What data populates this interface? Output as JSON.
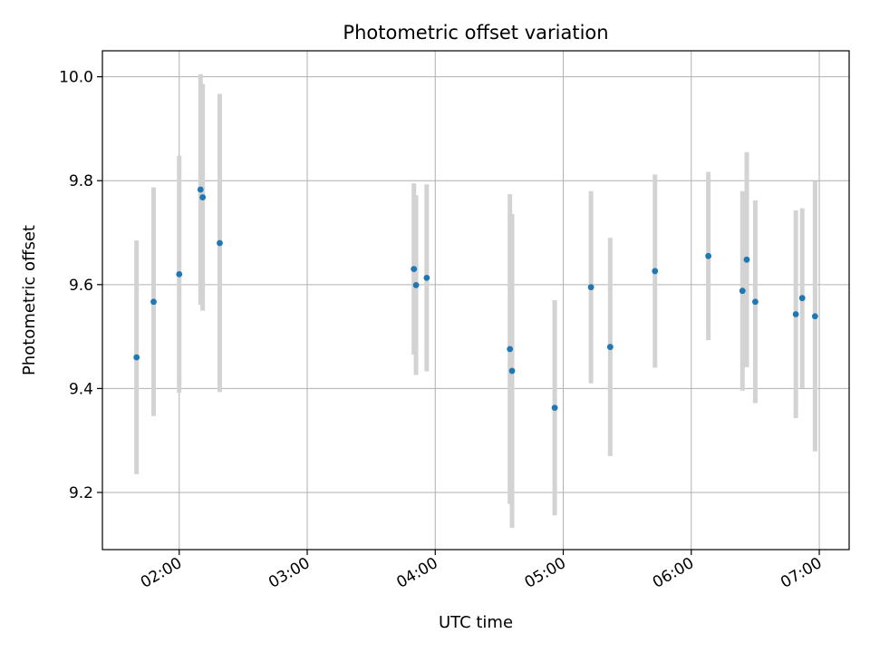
{
  "chart_data": {
    "type": "scatter",
    "title": "Photometric offset variation",
    "xlabel": "UTC time",
    "ylabel": "Photometric offset",
    "x_ticks": [
      "02:00",
      "03:00",
      "04:00",
      "05:00",
      "06:00",
      "07:00"
    ],
    "y_ticks": [
      "9.2",
      "9.4",
      "9.6",
      "9.8",
      "10.0"
    ],
    "xlim": [
      "01:24",
      "07:14"
    ],
    "ylim": [
      9.09,
      10.05
    ],
    "grid": true,
    "colors": {
      "point": "#1f77b4",
      "errorbar": "#d3d3d3",
      "grid": "#b0b0b0"
    },
    "points": [
      {
        "time": "01:40",
        "y": 9.46,
        "yerr": 0.225
      },
      {
        "time": "01:48",
        "y": 9.567,
        "yerr": 0.22
      },
      {
        "time": "02:00",
        "y": 9.62,
        "yerr": 0.228
      },
      {
        "time": "02:10",
        "y": 9.783,
        "yerr": 0.222
      },
      {
        "time": "02:11",
        "y": 9.768,
        "yerr": 0.218
      },
      {
        "time": "02:19",
        "y": 9.68,
        "yerr": 0.287
      },
      {
        "time": "03:50",
        "y": 9.63,
        "yerr": 0.165
      },
      {
        "time": "03:51",
        "y": 9.599,
        "yerr": 0.173
      },
      {
        "time": "03:56",
        "y": 9.613,
        "yerr": 0.18
      },
      {
        "time": "04:35",
        "y": 9.476,
        "yerr": 0.298
      },
      {
        "time": "04:36",
        "y": 9.434,
        "yerr": 0.302
      },
      {
        "time": "04:56",
        "y": 9.363,
        "yerr": 0.207
      },
      {
        "time": "05:13",
        "y": 9.595,
        "yerr": 0.185
      },
      {
        "time": "05:22",
        "y": 9.48,
        "yerr": 0.21
      },
      {
        "time": "05:43",
        "y": 9.626,
        "yerr": 0.186
      },
      {
        "time": "06:08",
        "y": 9.655,
        "yerr": 0.162
      },
      {
        "time": "06:24",
        "y": 9.588,
        "yerr": 0.192
      },
      {
        "time": "06:26",
        "y": 9.648,
        "yerr": 0.207
      },
      {
        "time": "06:30",
        "y": 9.567,
        "yerr": 0.195
      },
      {
        "time": "06:49",
        "y": 9.543,
        "yerr": 0.2
      },
      {
        "time": "06:52",
        "y": 9.574,
        "yerr": 0.173
      },
      {
        "time": "06:58",
        "y": 9.539,
        "yerr": 0.26
      }
    ]
  }
}
